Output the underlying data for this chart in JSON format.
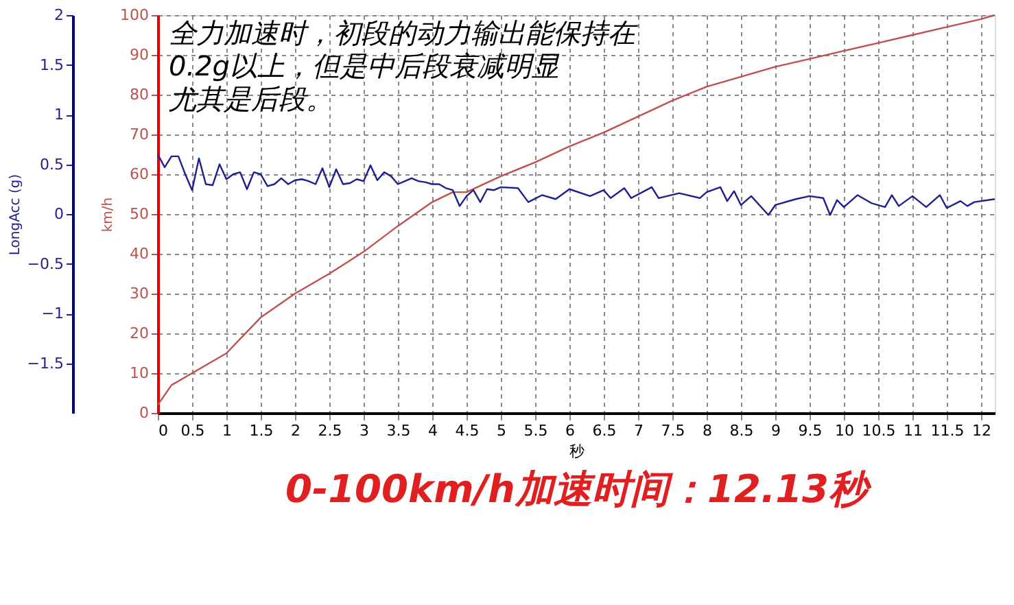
{
  "chart_data": {
    "type": "line",
    "title": "0-100km/h加速时间：12.13秒",
    "xlabel": "秒",
    "ylabel": "km/h",
    "y2label": "LongAcc (g)",
    "annotations": [
      "全力加速时，初段的动力输出能保持在",
      "0.2g以上，但是中后段衰减明显",
      "尤其是后段。"
    ],
    "xlim": [
      0,
      12.2
    ],
    "xticks": [
      0,
      0.5,
      1,
      1.5,
      2,
      2.5,
      3,
      3.5,
      4,
      4.5,
      5,
      5.5,
      6,
      6.5,
      7,
      7.5,
      8,
      8.5,
      9,
      9.5,
      10,
      10.5,
      11,
      11.5,
      12
    ],
    "ylim": [
      0,
      100
    ],
    "yticks": [
      0,
      10,
      20,
      30,
      40,
      50,
      60,
      70,
      80,
      90,
      100
    ],
    "y2lim": [
      -2,
      2
    ],
    "y2ticks": [
      -1.5,
      -1,
      -0.5,
      0,
      0.5,
      1,
      1.5,
      2
    ],
    "grid": true,
    "series": [
      {
        "color": "#c0504d",
        "x": [
          0,
          0.2,
          0.5,
          1,
          1.5,
          2,
          2.5,
          3,
          3.5,
          4,
          4.3,
          4.5,
          5,
          5.5,
          6,
          6.5,
          7,
          7.5,
          8,
          8.5,
          9,
          9.5,
          10,
          10.5,
          11,
          11.5,
          12,
          12.2
        ],
        "values": [
          2,
          7,
          10,
          15,
          24,
          30,
          35,
          40.5,
          47,
          53,
          55.5,
          55.5,
          59.5,
          63,
          67,
          70.5,
          74.5,
          78.5,
          82,
          84.5,
          87,
          89,
          91,
          93,
          95,
          97,
          99,
          100
        ]
      },
      {
        "color": "#1f1f8f",
        "axis": "y2",
        "x": [
          0,
          0.1,
          0.2,
          0.3,
          0.4,
          0.5,
          0.6,
          0.7,
          0.8,
          0.9,
          1,
          1.1,
          1.2,
          1.3,
          1.4,
          1.5,
          1.6,
          1.7,
          1.8,
          1.9,
          2,
          2.1,
          2.2,
          2.3,
          2.4,
          2.5,
          2.6,
          2.7,
          2.8,
          2.9,
          3,
          3.1,
          3.2,
          3.3,
          3.4,
          3.5,
          3.6,
          3.7,
          3.8,
          3.9,
          4,
          4.1,
          4.2,
          4.3,
          4.4,
          4.5,
          4.6,
          4.7,
          4.8,
          4.9,
          5,
          5.25,
          5.4,
          5.6,
          5.8,
          6,
          6.3,
          6.5,
          6.6,
          6.8,
          6.9,
          7.2,
          7.3,
          7.6,
          7.9,
          8,
          8.2,
          8.3,
          8.4,
          8.5,
          8.65,
          8.9,
          9,
          9.3,
          9.5,
          9.7,
          9.8,
          9.9,
          10,
          10.2,
          10.4,
          10.6,
          10.7,
          10.8,
          11,
          11.2,
          11.4,
          11.5,
          11.7,
          11.8,
          11.9,
          12.2
        ],
        "values": [
          0.6,
          0.47,
          0.58,
          0.58,
          0.4,
          0.24,
          0.56,
          0.3,
          0.29,
          0.5,
          0.35,
          0.4,
          0.42,
          0.25,
          0.42,
          0.4,
          0.28,
          0.3,
          0.36,
          0.3,
          0.34,
          0.35,
          0.33,
          0.3,
          0.46,
          0.27,
          0.45,
          0.3,
          0.31,
          0.35,
          0.33,
          0.49,
          0.34,
          0.42,
          0.38,
          0.3,
          0.33,
          0.36,
          0.33,
          0.32,
          0.3,
          0.3,
          0.26,
          0.24,
          0.08,
          0.18,
          0.24,
          0.12,
          0.25,
          0.24,
          0.27,
          0.26,
          0.12,
          0.19,
          0.15,
          0.25,
          0.18,
          0.24,
          0.16,
          0.26,
          0.16,
          0.27,
          0.16,
          0.21,
          0.16,
          0.22,
          0.27,
          0.13,
          0.23,
          0.09,
          0.18,
          -0.01,
          0.09,
          0.15,
          0.18,
          0.16,
          -0.01,
          0.14,
          0.07,
          0.19,
          0.11,
          0.07,
          0.19,
          0.08,
          0.18,
          0.07,
          0.19,
          0.06,
          0.13,
          0.08,
          0.12,
          0.15
        ]
      }
    ]
  }
}
